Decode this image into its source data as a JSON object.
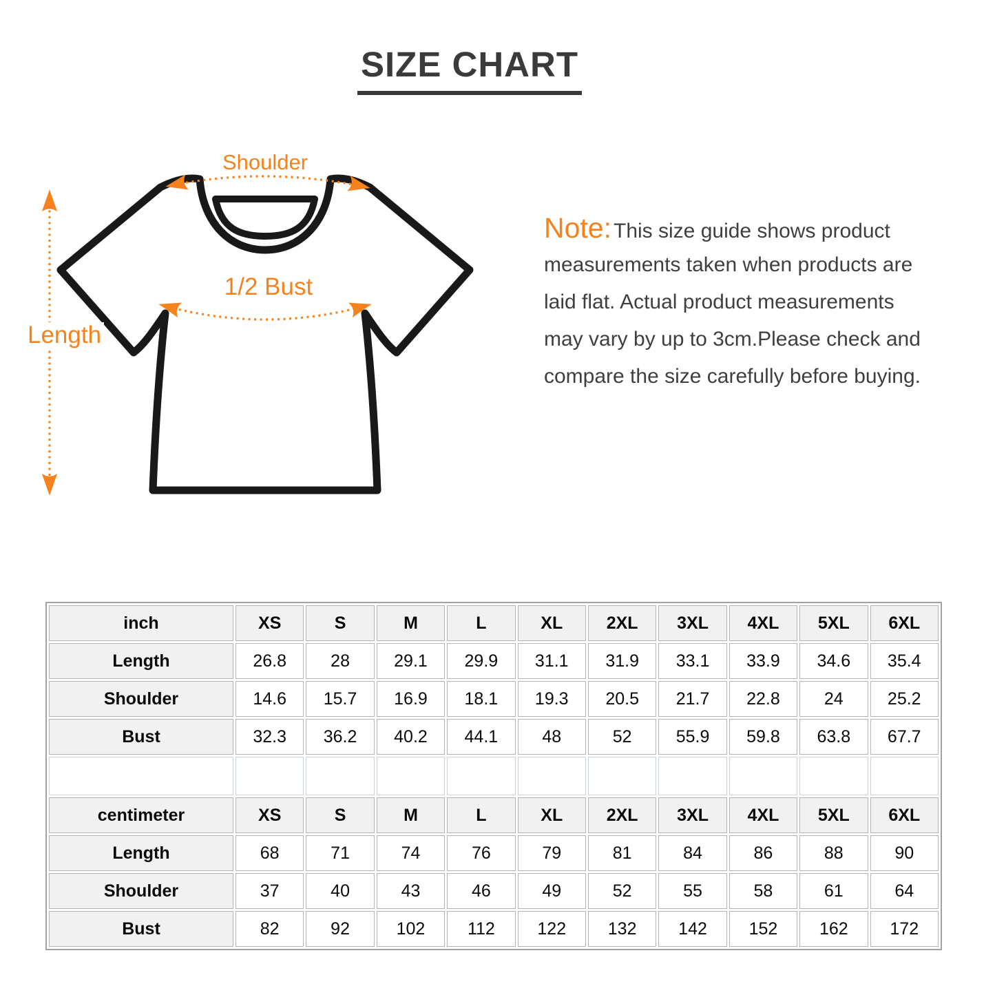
{
  "page_title": "SIZE CHART",
  "colors": {
    "accent_orange": "#f6821e",
    "title_gray": "#3a3a3a",
    "table_border": "#b3b3b3",
    "header_cell_bg": "#f1f1f1",
    "shirt_outline": "#191919"
  },
  "diagram": {
    "labels": {
      "shoulder": "Shoulder",
      "bust": "1/2 Bust",
      "length": "Length"
    }
  },
  "note": {
    "label": "Note:",
    "lines": [
      "This size guide shows product",
      "measurements taken when products are",
      "laid flat. Actual product measurements",
      "may vary by up to 3cm.Please check and",
      "compare the size carefully before buying."
    ]
  },
  "chart_data": [
    {
      "type": "table",
      "unit_label": "inch",
      "columns": [
        "XS",
        "S",
        "M",
        "L",
        "XL",
        "2XL",
        "3XL",
        "4XL",
        "5XL",
        "6XL"
      ],
      "rows": [
        {
          "label": "Length",
          "values": [
            "26.8",
            "28",
            "29.1",
            "29.9",
            "31.1",
            "31.9",
            "33.1",
            "33.9",
            "34.6",
            "35.4"
          ]
        },
        {
          "label": "Shoulder",
          "values": [
            "14.6",
            "15.7",
            "16.9",
            "18.1",
            "19.3",
            "20.5",
            "21.7",
            "22.8",
            "24",
            "25.2"
          ]
        },
        {
          "label": "Bust",
          "values": [
            "32.3",
            "36.2",
            "40.2",
            "44.1",
            "48",
            "52",
            "55.9",
            "59.8",
            "63.8",
            "67.7"
          ]
        }
      ]
    },
    {
      "type": "table",
      "unit_label": "centimeter",
      "columns": [
        "XS",
        "S",
        "M",
        "L",
        "XL",
        "2XL",
        "3XL",
        "4XL",
        "5XL",
        "6XL"
      ],
      "rows": [
        {
          "label": "Length",
          "values": [
            "68",
            "71",
            "74",
            "76",
            "79",
            "81",
            "84",
            "86",
            "88",
            "90"
          ]
        },
        {
          "label": "Shoulder",
          "values": [
            "37",
            "40",
            "43",
            "46",
            "49",
            "52",
            "55",
            "58",
            "61",
            "64"
          ]
        },
        {
          "label": "Bust",
          "values": [
            "82",
            "92",
            "102",
            "112",
            "122",
            "132",
            "142",
            "152",
            "162",
            "172"
          ]
        }
      ]
    }
  ]
}
